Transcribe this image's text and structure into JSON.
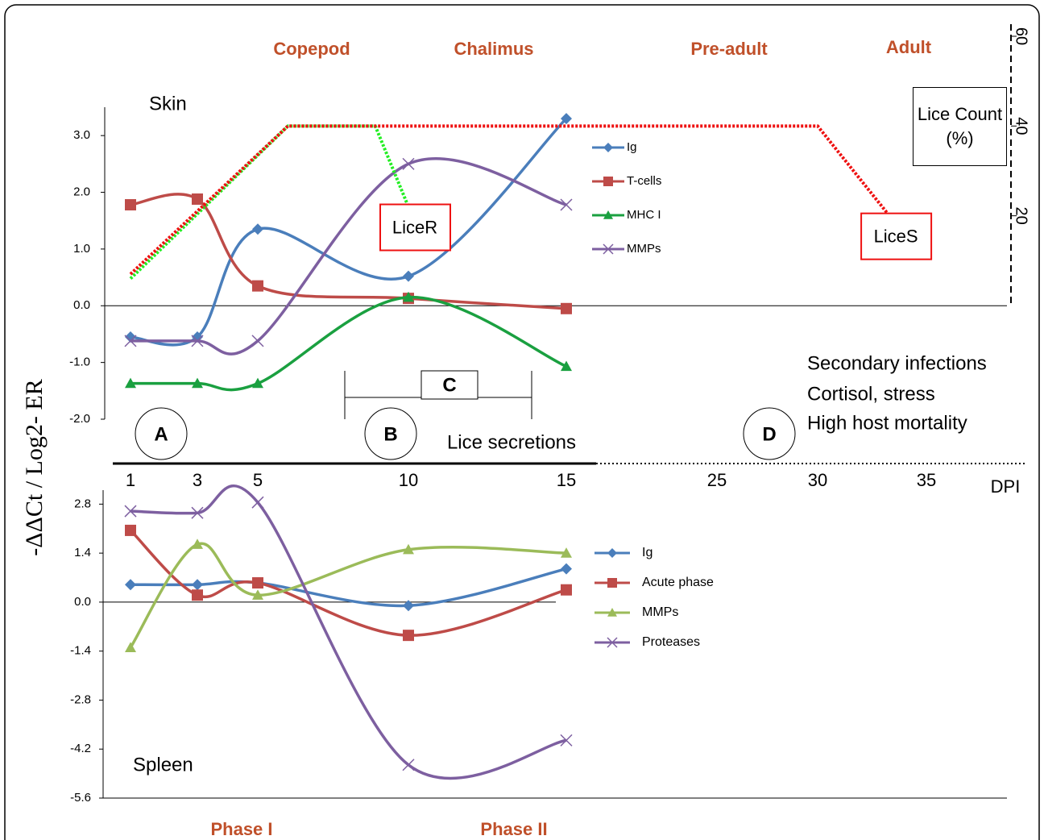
{
  "y_axis_label": "-ΔΔCt / Log2- ER",
  "stages": [
    "Copepod",
    "Chalimus",
    "Pre-adult",
    "Adult"
  ],
  "phases": [
    "Phase I",
    "Phase II"
  ],
  "annotations": {
    "A": "A",
    "B": "B",
    "C": "C",
    "D": "D",
    "lice_secretions": "Lice secretions",
    "notes": [
      "Secondary infections",
      "Cortisol, stress",
      "High host mortality"
    ]
  },
  "chart_data": [
    {
      "type": "line",
      "title": "Skin",
      "smooth": true,
      "x": [
        1,
        3,
        5,
        10,
        15
      ],
      "xlim": [
        1,
        35
      ],
      "xticks": [
        1,
        3,
        5,
        10,
        15,
        25,
        30,
        35
      ],
      "x_label": "DPI",
      "ylim": [
        -2.0,
        3.5
      ],
      "yticks": [
        {
          "value": 3,
          "label": "3.0"
        },
        {
          "value": 2,
          "label": "2.0"
        },
        {
          "value": 1,
          "label": "1.0"
        },
        {
          "value": 0,
          "label": "0.0"
        },
        {
          "value": -1,
          "label": "-1.0"
        },
        {
          "value": -2,
          "label": "-2.0"
        }
      ],
      "y2lim": [
        0,
        60
      ],
      "y2ticks": [
        20,
        40,
        60
      ],
      "y2_label": "Lice Count (%)",
      "series": [
        {
          "name": "Ig",
          "color": "#4a7ebb",
          "marker": "diamond",
          "values": [
            -0.55,
            -0.55,
            1.35,
            0.52,
            3.3
          ]
        },
        {
          "name": "T-cells",
          "color": "#be4b48",
          "marker": "square",
          "values": [
            1.78,
            1.88,
            0.35,
            0.13,
            -0.05
          ]
        },
        {
          "name": "MHC I",
          "color": "#1aa040",
          "marker": "triangle",
          "values": [
            -1.37,
            -1.37,
            -1.37,
            0.15,
            -1.07
          ]
        },
        {
          "name": "MMPs",
          "color": "#7d5fa0",
          "marker": "cross",
          "values": [
            -0.62,
            -0.62,
            -0.62,
            2.5,
            1.78
          ]
        },
        {
          "name": "LiceR",
          "color": "#22ee22",
          "axis": "y2",
          "style": "dotted",
          "x": [
            1,
            6,
            8.9,
            10
          ],
          "values": [
            6,
            40,
            40,
            22
          ]
        },
        {
          "name": "LiceS",
          "color": "#ee1111",
          "axis": "y2",
          "style": "dotted",
          "x": [
            1,
            6,
            30,
            33.3
          ],
          "values": [
            7,
            40,
            40,
            20
          ]
        }
      ]
    },
    {
      "type": "line",
      "title": "Spleen",
      "smooth": true,
      "x": [
        1,
        3,
        5,
        10,
        15
      ],
      "xlim": [
        1,
        35
      ],
      "ylim": [
        -5.6,
        3.2
      ],
      "yticks": [
        {
          "value": 2.8,
          "label": "2.8"
        },
        {
          "value": 1.4,
          "label": "1.4"
        },
        {
          "value": 0,
          "label": "0.0"
        },
        {
          "value": -1.4,
          "label": "-1.4"
        },
        {
          "value": -2.8,
          "label": "-2.8"
        },
        {
          "value": -4.2,
          "label": "-4.2"
        },
        {
          "value": -5.6,
          "label": "-5.6"
        }
      ],
      "series": [
        {
          "name": "Ig",
          "color": "#4a7ebb",
          "marker": "diamond",
          "values": [
            0.5,
            0.5,
            0.55,
            -0.1,
            0.95
          ]
        },
        {
          "name": "Acute phase",
          "color": "#be4b48",
          "marker": "square",
          "values": [
            2.05,
            0.2,
            0.55,
            -0.95,
            0.35
          ]
        },
        {
          "name": "MMPs",
          "color": "#9bbb59",
          "marker": "triangle",
          "values": [
            -1.3,
            1.65,
            0.2,
            1.5,
            1.4
          ]
        },
        {
          "name": "Proteases",
          "color": "#7d5fa0",
          "marker": "cross",
          "values": [
            2.6,
            2.55,
            2.85,
            -4.65,
            -3.95
          ]
        }
      ]
    }
  ]
}
